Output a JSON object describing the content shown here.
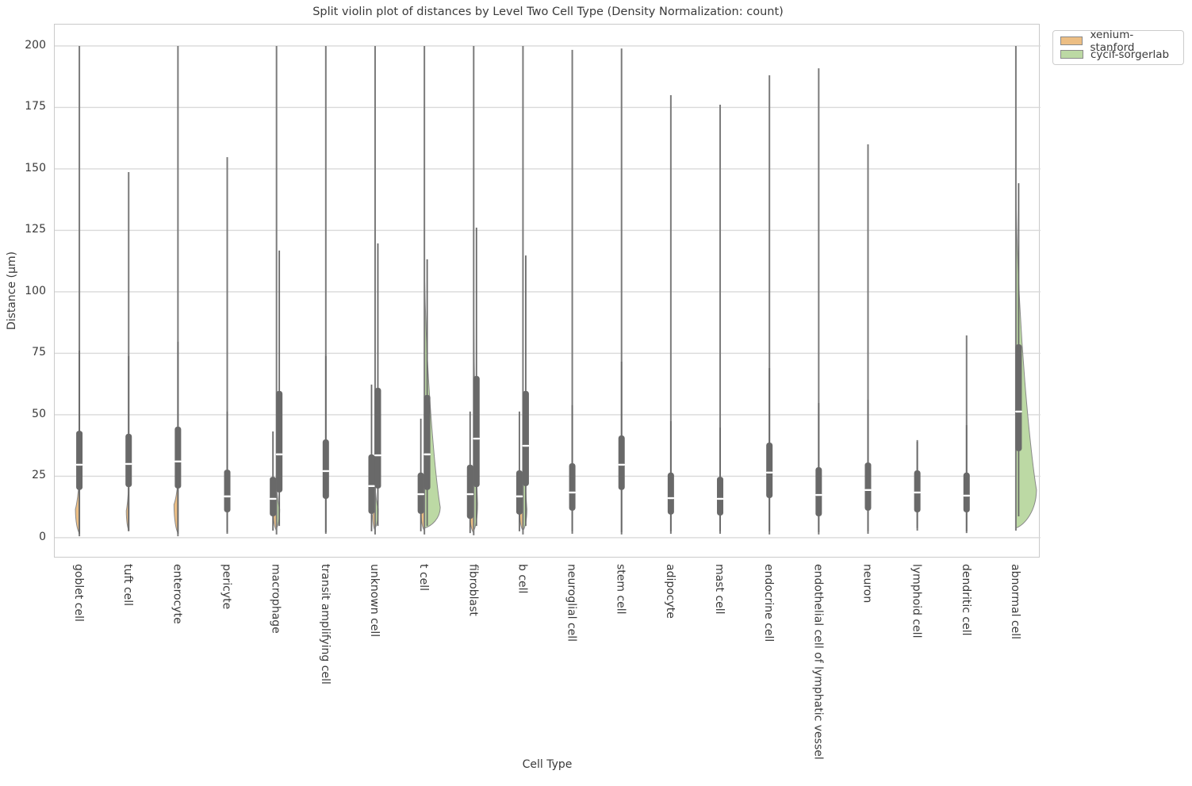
{
  "chart_data": {
    "type": "violin",
    "variant": "split-violin-with-inner-box",
    "title": "Split violin plot of distances by Level Two Cell Type (Density Normalization: count)",
    "xlabel": "Cell Type",
    "ylabel": "Distance (µm)",
    "yticks": [
      0,
      25,
      50,
      75,
      100,
      125,
      150,
      175,
      200
    ],
    "ylim": [
      -8.4,
      208.7
    ],
    "grid": "horizontal",
    "legend_position": "upper-right-outside",
    "legend": [
      {
        "label": "xenium-stanford",
        "color": "#ecbe84"
      },
      {
        "label": "cycif-sorgerlab",
        "color": "#bcd9a4"
      }
    ],
    "colors": {
      "box": "#696969",
      "whisker": "#696969",
      "violin_edge": "#7b7b7b",
      "median": "#ffffff",
      "grid": "#d9d9d9",
      "axis_border": "#cacaca",
      "text": "#3a3a3a"
    },
    "categories": [
      {
        "label": "goblet cell",
        "vmin": 0.6,
        "vmax": 200,
        "boxes": [
          {
            "pos": "center",
            "q1": 19.4,
            "q3": 43.5,
            "med": 29.7,
            "wlo": 1.6,
            "whi": 76.1
          }
        ],
        "fills": [
          {
            "series": 0,
            "side": "left",
            "min": 1.9,
            "max": 26.0,
            "peak": 11.6,
            "width": 5
          }
        ]
      },
      {
        "label": "tuft cell",
        "vmin": 2.6,
        "vmax": 148.7,
        "boxes": [
          {
            "pos": "center",
            "q1": 20.6,
            "q3": 42.3,
            "med": 30.0,
            "wlo": 2.9,
            "whi": 73.9
          }
        ],
        "fills": [
          {
            "series": 0,
            "side": "left",
            "min": 3.2,
            "max": 22.6,
            "peak": 11.0,
            "width": 3
          }
        ]
      },
      {
        "label": "enterocyte",
        "vmin": 0.6,
        "vmax": 200,
        "boxes": [
          {
            "pos": "center",
            "q1": 20.0,
            "q3": 45.2,
            "med": 31.0,
            "wlo": 1.6,
            "whi": 79.7
          }
        ],
        "fills": [
          {
            "series": 0,
            "side": "left",
            "min": 1.9,
            "max": 24.2,
            "peak": 13.5,
            "width": 5
          }
        ]
      },
      {
        "label": "pericyte",
        "vmin": 1.6,
        "vmax": 154.8,
        "boxes": [
          {
            "pos": "center",
            "q1": 10.3,
            "q3": 27.7,
            "med": 16.8,
            "wlo": 2.3,
            "whi": 51.3
          }
        ],
        "fills": []
      },
      {
        "label": "macrophage",
        "vmin": 1.3,
        "vmax": 200,
        "boxes": [
          {
            "pos": "left",
            "q1": 8.7,
            "q3": 24.8,
            "med": 15.8,
            "wlo": 2.9,
            "whi": 43.2
          },
          {
            "pos": "right",
            "q1": 18.4,
            "q3": 59.7,
            "med": 33.9,
            "wlo": 4.8,
            "whi": 116.8
          }
        ],
        "fills": [
          {
            "series": 0,
            "side": "left",
            "min": 2.9,
            "max": 20.0,
            "peak": 9.7,
            "width": 4
          },
          {
            "series": 1,
            "side": "right",
            "min": 3.9,
            "max": 21.9,
            "peak": 11.6,
            "width": 4
          }
        ]
      },
      {
        "label": "transit amplifying cell",
        "vmin": 1.6,
        "vmax": 200,
        "boxes": [
          {
            "pos": "center",
            "q1": 15.8,
            "q3": 40.0,
            "med": 27.1,
            "wlo": 2.3,
            "whi": 73.9
          }
        ],
        "fills": []
      },
      {
        "label": "unknown cell",
        "vmin": 1.3,
        "vmax": 200,
        "boxes": [
          {
            "pos": "left",
            "q1": 9.7,
            "q3": 33.9,
            "med": 21.0,
            "wlo": 2.6,
            "whi": 62.3
          },
          {
            "pos": "right",
            "q1": 20.0,
            "q3": 61.0,
            "med": 33.5,
            "wlo": 4.8,
            "whi": 119.7
          }
        ],
        "fills": [
          {
            "series": 0,
            "side": "left",
            "min": 2.9,
            "max": 18.1,
            "peak": 9.0,
            "width": 3
          },
          {
            "series": 1,
            "side": "right",
            "min": 3.9,
            "max": 21.9,
            "peak": 11.6,
            "width": 4
          }
        ]
      },
      {
        "label": "t cell",
        "vmin": 1.3,
        "vmax": 200,
        "boxes": [
          {
            "pos": "left",
            "q1": 9.7,
            "q3": 26.5,
            "med": 17.7,
            "wlo": 2.6,
            "whi": 48.4
          },
          {
            "pos": "right",
            "q1": 19.4,
            "q3": 58.1,
            "med": 33.9,
            "wlo": 4.8,
            "whi": 113.2
          }
        ],
        "fills": [
          {
            "series": 0,
            "side": "left",
            "min": 2.9,
            "max": 20.0,
            "peak": 9.7,
            "width": 4
          },
          {
            "series": 1,
            "side": "right",
            "min": 3.9,
            "max": 113.2,
            "peak": 12.3,
            "width": 20
          }
        ]
      },
      {
        "label": "fibroblast",
        "vmin": 1.0,
        "vmax": 200,
        "boxes": [
          {
            "pos": "left",
            "q1": 7.7,
            "q3": 29.7,
            "med": 17.7,
            "wlo": 1.9,
            "whi": 51.3
          },
          {
            "pos": "right",
            "q1": 20.6,
            "q3": 65.8,
            "med": 40.3,
            "wlo": 4.8,
            "whi": 126.1
          }
        ],
        "fills": [
          {
            "series": 0,
            "side": "left",
            "min": 1.9,
            "max": 21.9,
            "peak": 10.3,
            "width": 5
          },
          {
            "series": 1,
            "side": "right",
            "min": 2.9,
            "max": 100.0,
            "peak": 13.9,
            "width": 5
          }
        ]
      },
      {
        "label": "b cell",
        "vmin": 1.3,
        "vmax": 200,
        "boxes": [
          {
            "pos": "left",
            "q1": 9.4,
            "q3": 27.4,
            "med": 16.8,
            "wlo": 2.6,
            "whi": 51.3
          },
          {
            "pos": "right",
            "q1": 21.0,
            "q3": 59.7,
            "med": 37.4,
            "wlo": 4.8,
            "whi": 114.8
          }
        ],
        "fills": [
          {
            "series": 0,
            "side": "left",
            "min": 2.9,
            "max": 20.0,
            "peak": 9.7,
            "width": 4
          },
          {
            "series": 1,
            "side": "right",
            "min": 2.9,
            "max": 60.0,
            "peak": 11.6,
            "width": 5
          }
        ]
      },
      {
        "label": "neuroglial cell",
        "vmin": 1.6,
        "vmax": 198.4,
        "boxes": [
          {
            "pos": "center",
            "q1": 11.0,
            "q3": 30.3,
            "med": 18.4,
            "wlo": 2.6,
            "whi": 53.9
          }
        ],
        "fills": []
      },
      {
        "label": "stem cell",
        "vmin": 1.3,
        "vmax": 199.0,
        "boxes": [
          {
            "pos": "center",
            "q1": 19.4,
            "q3": 41.6,
            "med": 29.7,
            "wlo": 2.3,
            "whi": 71.6
          }
        ],
        "fills": []
      },
      {
        "label": "adipocyte",
        "vmin": 1.6,
        "vmax": 180.0,
        "boxes": [
          {
            "pos": "center",
            "q1": 9.4,
            "q3": 26.5,
            "med": 16.1,
            "wlo": 2.6,
            "whi": 47.4
          }
        ],
        "fills": []
      },
      {
        "label": "mast cell",
        "vmin": 1.6,
        "vmax": 176.1,
        "boxes": [
          {
            "pos": "center",
            "q1": 9.0,
            "q3": 24.8,
            "med": 15.8,
            "wlo": 2.6,
            "whi": 44.8
          }
        ],
        "fills": []
      },
      {
        "label": "endocrine cell",
        "vmin": 1.3,
        "vmax": 188.1,
        "boxes": [
          {
            "pos": "center",
            "q1": 16.1,
            "q3": 38.7,
            "med": 26.5,
            "wlo": 2.6,
            "whi": 69.0
          }
        ],
        "fills": []
      },
      {
        "label": "endothelial cell of lymphatic vessel",
        "vmin": 1.3,
        "vmax": 190.9,
        "boxes": [
          {
            "pos": "center",
            "q1": 8.7,
            "q3": 28.7,
            "med": 17.4,
            "wlo": 2.3,
            "whi": 54.8
          }
        ],
        "fills": []
      },
      {
        "label": "neuron",
        "vmin": 1.6,
        "vmax": 160.0,
        "boxes": [
          {
            "pos": "center",
            "q1": 11.0,
            "q3": 30.6,
            "med": 19.4,
            "wlo": 2.6,
            "whi": 56.1
          }
        ],
        "fills": []
      },
      {
        "label": "lymphoid cell",
        "vmin": 2.9,
        "vmax": 39.7,
        "boxes": [
          {
            "pos": "center",
            "q1": 10.3,
            "q3": 27.4,
            "med": 18.4,
            "wlo": 3.9,
            "whi": 39.0
          }
        ],
        "fills": []
      },
      {
        "label": "dendritic cell",
        "vmin": 1.9,
        "vmax": 82.3,
        "boxes": [
          {
            "pos": "center",
            "q1": 10.3,
            "q3": 26.5,
            "med": 17.1,
            "wlo": 2.6,
            "whi": 45.8
          }
        ],
        "fills": []
      },
      {
        "label": "abnormal cell",
        "vmin": 2.9,
        "vmax": 200,
        "boxes": [
          {
            "pos": "right",
            "q1": 35.2,
            "q3": 78.7,
            "med": 51.3,
            "wlo": 8.7,
            "whi": 144.2
          }
        ],
        "fills": [
          {
            "series": 1,
            "side": "right",
            "min": 3.9,
            "max": 145.0,
            "peak": 19.4,
            "width": 26
          }
        ]
      }
    ]
  }
}
